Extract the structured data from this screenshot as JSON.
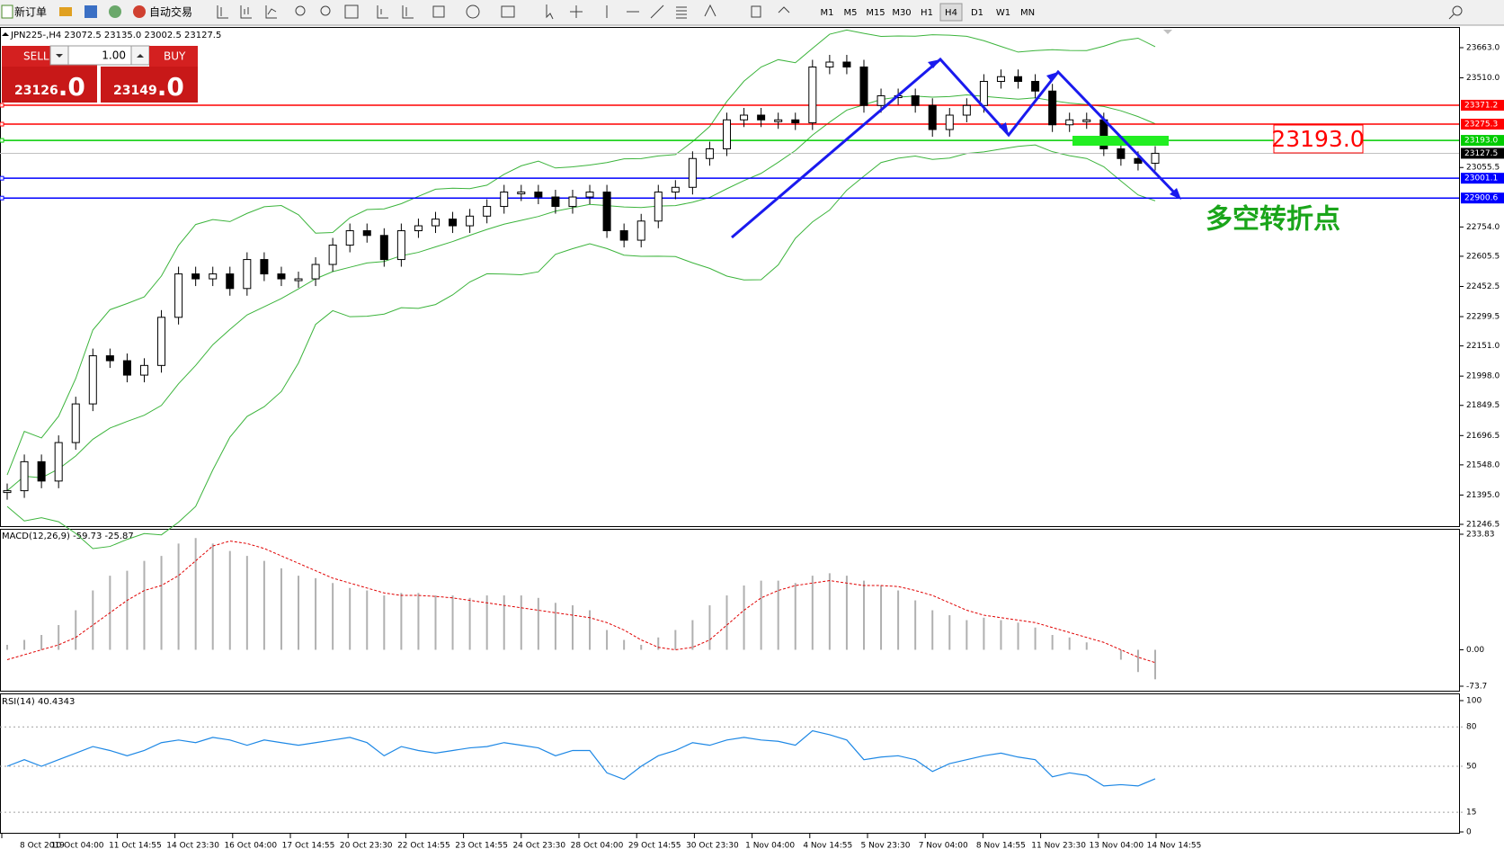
{
  "toolbar": {
    "new_order": "新订单",
    "auto_trading": "自动交易",
    "timeframes": [
      "M1",
      "M5",
      "M15",
      "M30",
      "H1",
      "H4",
      "D1",
      "W1",
      "MN"
    ],
    "active_timeframe": "H4"
  },
  "chart": {
    "symbol_info": "JPN225-,H4  23072.5 23135.0 23002.5 23127.5",
    "trade_panel": {
      "sell": "SELL",
      "buy": "BUY",
      "lot": "1.00",
      "bid_big": "23126",
      "bid_small": ".0",
      "ask_big": "23149",
      "ask_small": ".0"
    },
    "ylim": [
      21246.5,
      23663
    ],
    "yticks": [
      {
        "value": 23663,
        "label": "23663.0"
      },
      {
        "value": 23510,
        "label": "23510.0"
      },
      23055.5,
      {
        "value": 22754,
        "label": "22754.0"
      },
      22605.5,
      22452.5,
      22299.5,
      {
        "value": 22151,
        "label": "22151.0"
      },
      {
        "value": 21998,
        "label": "21998.0"
      },
      21849.5,
      21696.5,
      {
        "value": 21548,
        "label": "21548.0"
      },
      {
        "value": 21395,
        "label": "21395.0"
      },
      21246.5
    ],
    "levels": [
      {
        "value": 23371.2,
        "label": "23371.2",
        "color": "#ff0000"
      },
      {
        "value": 23275.3,
        "label": "23275.3",
        "color": "#ff0000"
      },
      {
        "value": 23193,
        "label": "23193.0",
        "color": "#00cc00"
      },
      {
        "value": 23001.1,
        "label": "23001.1",
        "color": "#0000ff"
      },
      {
        "value": 22900.6,
        "label": "22900.6",
        "color": "#0000ff"
      }
    ],
    "current_price": {
      "value": 23127.5,
      "label": "23127.5"
    },
    "annotation_price": "23193.0",
    "annotation_text": "多空转折点",
    "closes": [
      21417,
      21564,
      21466,
      21661,
      21857,
      22101,
      22076,
      22003,
      22052,
      22296,
      22516,
      22491,
      22516,
      22442,
      22589,
      22516,
      22491,
      22491,
      22564,
      22662,
      22735,
      22711,
      22589,
      22735,
      22760,
      22794,
      22760,
      22809,
      22858,
      22931,
      22931,
      22906,
      22858,
      22906,
      22931,
      22735,
      22687,
      22784,
      22931,
      22955,
      23101,
      23150,
      23297,
      23321,
      23297,
      23297,
      23282,
      23565,
      23590,
      23565,
      23370,
      23419,
      23419,
      23370,
      23248,
      23321,
      23370,
      23492,
      23516,
      23492,
      23443,
      23272,
      23297,
      23297,
      23150,
      23101,
      23077,
      23127.5
    ]
  },
  "macd": {
    "header": "MACD(12,26,9) -59.73 -25.87",
    "ylim": [
      -73.7,
      233.83
    ],
    "yticks": [
      233.83,
      {
        "value": 0,
        "label": "0.00"
      },
      -73.7
    ],
    "histogram": [
      10,
      20,
      30,
      50,
      80,
      120,
      150,
      160,
      180,
      190,
      215,
      226,
      215,
      200,
      190,
      180,
      165,
      150,
      145,
      135,
      125,
      120,
      110,
      115,
      115,
      110,
      110,
      105,
      110,
      110,
      110,
      105,
      95,
      90,
      80,
      40,
      20,
      10,
      25,
      40,
      60,
      90,
      110,
      130,
      140,
      140,
      135,
      150,
      155,
      150,
      140,
      130,
      120,
      100,
      80,
      70,
      60,
      65,
      60,
      55,
      45,
      30,
      25,
      15,
      0,
      -20,
      -45,
      -59.73
    ],
    "signal": [
      -20,
      -10,
      0,
      10,
      25,
      50,
      75,
      100,
      120,
      130,
      150,
      180,
      210,
      220,
      215,
      205,
      190,
      175,
      160,
      145,
      135,
      125,
      115,
      110,
      110,
      108,
      105,
      100,
      95,
      90,
      85,
      80,
      75,
      70,
      65,
      55,
      40,
      20,
      5,
      0,
      5,
      20,
      50,
      80,
      105,
      120,
      130,
      135,
      140,
      135,
      130,
      130,
      128,
      120,
      110,
      95,
      80,
      70,
      65,
      60,
      55,
      45,
      35,
      25,
      15,
      0,
      -15,
      -25.87
    ]
  },
  "rsi": {
    "header": "RSI(14) 40.4343",
    "ylim": [
      0,
      100
    ],
    "yticks": [
      100,
      80,
      50,
      15,
      0
    ],
    "values": [
      50,
      55,
      50,
      55,
      60,
      65,
      62,
      58,
      62,
      68,
      70,
      68,
      72,
      70,
      66,
      70,
      68,
      66,
      68,
      70,
      72,
      68,
      58,
      65,
      62,
      60,
      62,
      64,
      65,
      68,
      66,
      64,
      58,
      62,
      62,
      45,
      40,
      50,
      58,
      62,
      68,
      66,
      70,
      72,
      70,
      69,
      66,
      77,
      74,
      70,
      55,
      57,
      58,
      55,
      46,
      52,
      55,
      58,
      60,
      57,
      55,
      42,
      45,
      43,
      35,
      36,
      35,
      40.4343
    ]
  },
  "time_axis": {
    "labels": [
      "8 Oct 2019",
      "10 Oct 04:00",
      "11 Oct 14:55",
      "14 Oct 23:30",
      "16 Oct 04:00",
      "17 Oct 14:55",
      "20 Oct 23:30",
      "22 Oct 14:55",
      "23 Oct 14:55",
      "24 Oct 23:30",
      "28 Oct 04:00",
      "29 Oct 14:55",
      "30 Oct 23:30",
      "1 Nov 04:00",
      "4 Nov 14:55",
      "5 Nov 23:30",
      "7 Nov 04:00",
      "8 Nov 14:55",
      "11 Nov 23:30",
      "13 Nov 04:00",
      "14 Nov 14:55"
    ]
  }
}
